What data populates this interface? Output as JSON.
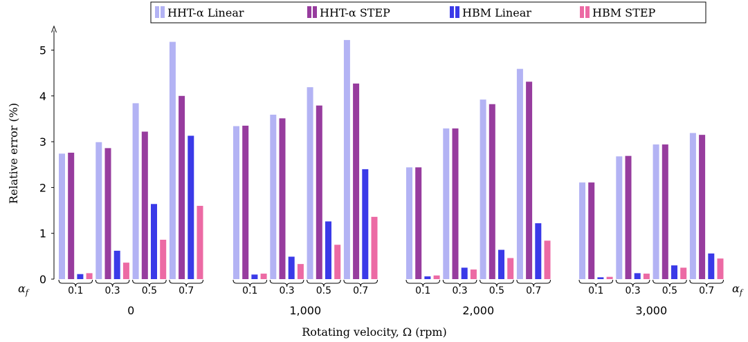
{
  "chart_data": {
    "type": "bar",
    "title": "",
    "xlabel": "Rotating velocity, Ω (rpm)",
    "ylabel": "Relative error (%)",
    "ylim": [
      0,
      5.5
    ],
    "yticks": [
      0,
      1,
      2,
      3,
      4,
      5
    ],
    "groups": [
      "0",
      "1,000",
      "2,000",
      "3,000"
    ],
    "subcategories": [
      "0.1",
      "0.3",
      "0.5",
      "0.7"
    ],
    "subcategory_axis_label": "α",
    "subcategory_axis_subscript": "f",
    "legend_position": "top",
    "series": [
      {
        "name": "HHT-α Linear",
        "color": "#b3b3f4",
        "values": [
          2.74,
          2.99,
          3.84,
          5.18,
          3.34,
          3.59,
          4.19,
          5.22,
          2.44,
          3.29,
          3.92,
          4.59,
          2.11,
          2.68,
          2.94,
          3.19
        ]
      },
      {
        "name": "HHT-α STEP",
        "color": "#973c9e",
        "values": [
          2.76,
          2.86,
          3.22,
          4.0,
          3.35,
          3.51,
          3.79,
          4.27,
          2.44,
          3.29,
          3.82,
          4.31,
          2.11,
          2.69,
          2.94,
          3.15
        ]
      },
      {
        "name": "HBM Linear",
        "color": "#3a3ae8",
        "values": [
          0.11,
          0.62,
          1.64,
          3.13,
          0.1,
          0.49,
          1.26,
          2.4,
          0.06,
          0.25,
          0.64,
          1.22,
          0.04,
          0.13,
          0.3,
          0.56
        ]
      },
      {
        "name": "HBM STEP",
        "color": "#ec6aa4",
        "values": [
          0.13,
          0.36,
          0.86,
          1.6,
          0.12,
          0.33,
          0.75,
          1.36,
          0.08,
          0.21,
          0.46,
          0.84,
          0.05,
          0.12,
          0.25,
          0.45
        ]
      }
    ]
  }
}
